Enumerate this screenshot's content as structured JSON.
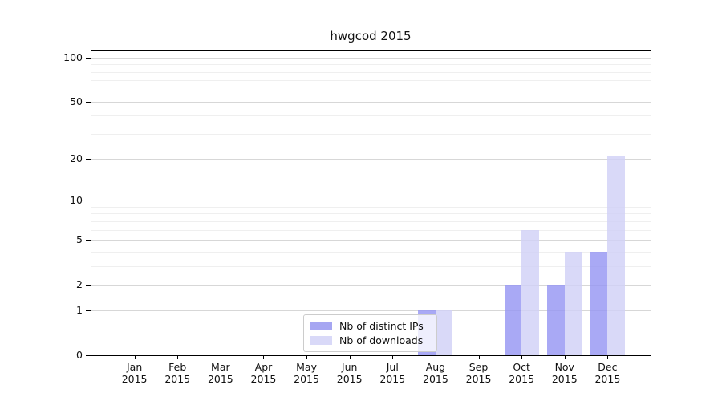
{
  "figure": {
    "background": "#ffffff"
  },
  "chart_data": {
    "type": "bar",
    "title": "hwgcod 2015",
    "categories": [
      "Jan",
      "Feb",
      "Mar",
      "Apr",
      "May",
      "Jun",
      "Jul",
      "Aug",
      "Sep",
      "Oct",
      "Nov",
      "Dec"
    ],
    "category_year": "2015",
    "series": [
      {
        "name": "Nb of distinct IPs",
        "color": "#a6a6f2",
        "fill": "rgba(150,150,243,0.82)",
        "values": [
          0,
          0,
          0,
          0,
          0,
          0,
          0,
          1,
          0,
          2,
          2,
          4
        ]
      },
      {
        "name": "Nb of downloads",
        "color": "#d9d9f8",
        "fill": "rgba(209,209,247,0.82)",
        "values": [
          0,
          0,
          0,
          0,
          0,
          0,
          0,
          1,
          0,
          6,
          4,
          21
        ]
      }
    ],
    "yscale": "log1p",
    "ylim": [
      0,
      112
    ],
    "yticks": [
      0,
      1,
      2,
      5,
      10,
      20,
      50,
      100
    ],
    "minor_yticks": [
      3,
      4,
      6,
      7,
      8,
      9,
      30,
      40,
      60,
      70,
      80,
      90
    ],
    "grid": {
      "major_color": "#d7d7d7",
      "minor_color": "#efefef",
      "vertical": false
    },
    "legend_position": "lower center",
    "xlabel": "",
    "ylabel": ""
  }
}
